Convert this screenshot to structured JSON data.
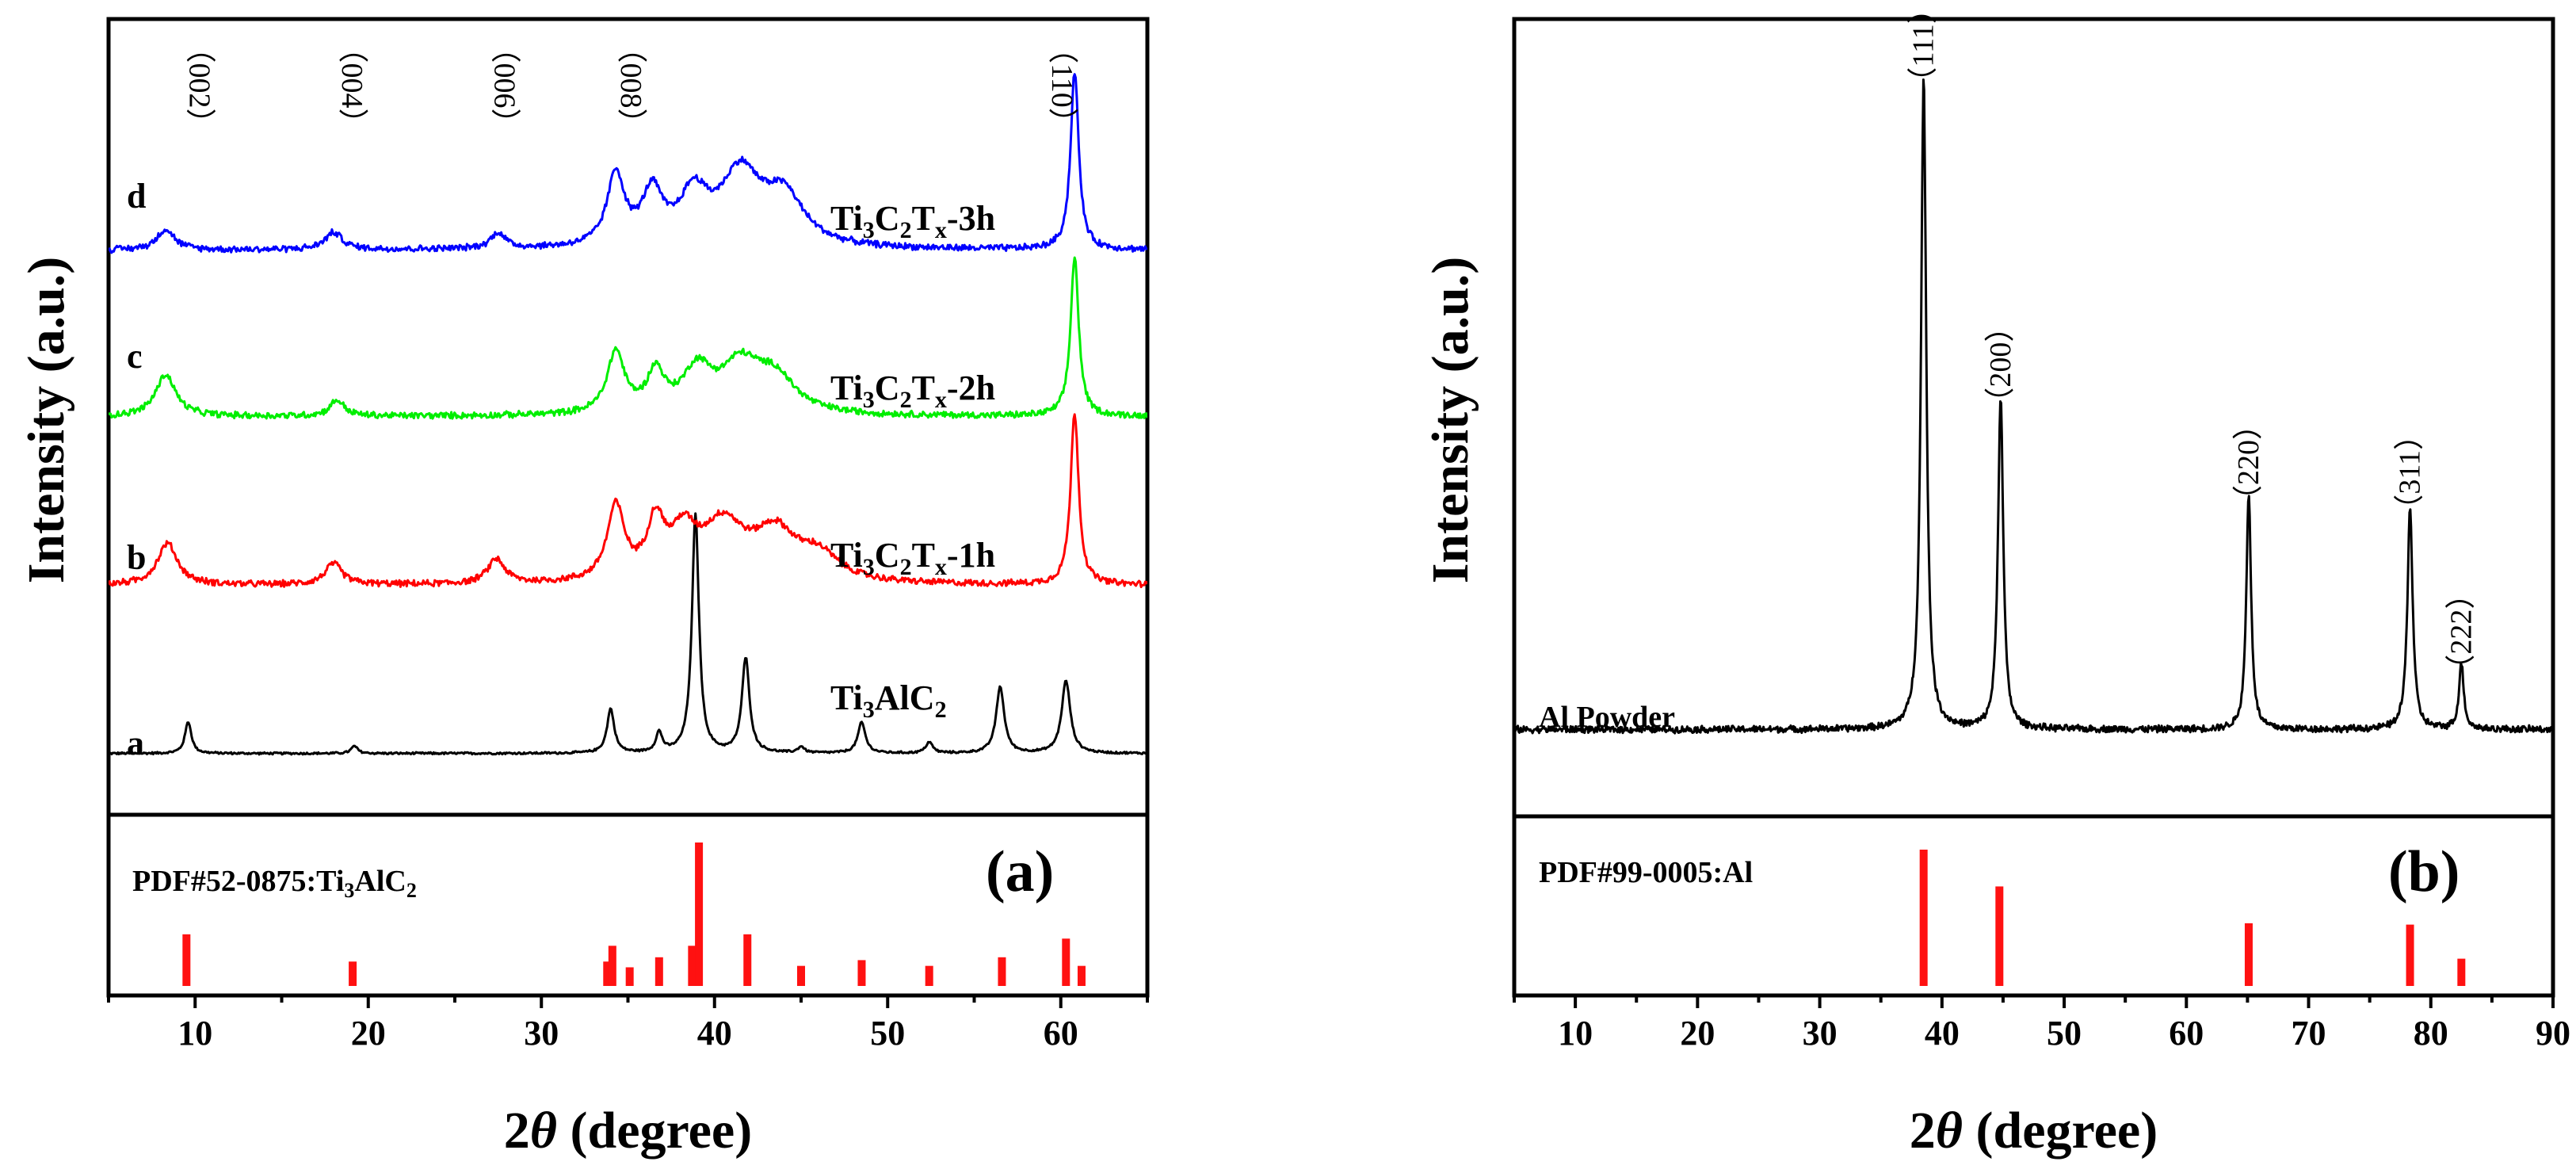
{
  "colors": {
    "black": "#000000",
    "red": "#ff0000",
    "green": "#00ee00",
    "blue": "#0000ff",
    "ref": "#ff1111"
  },
  "chart_data": [
    {
      "type": "line",
      "panel": "(a)",
      "xlabel": "2θ (degree)",
      "xlabel_parts": [
        "2",
        "θ",
        " (degree)"
      ],
      "ylabel": "Intensity (a.u.)",
      "xlim": [
        5,
        65
      ],
      "xticks": [
        "10",
        "20",
        "30",
        "40",
        "50",
        "60"
      ],
      "series": [
        {
          "name": "Ti3AlC2",
          "curve_letter": "a",
          "color": "#000000",
          "baseline": 0.06,
          "noise": 0.01,
          "peaks": [
            {
              "x": 9.6,
              "h": 0.26,
              "w": 0.22
            },
            {
              "x": 19.2,
              "h": 0.06,
              "w": 0.22
            },
            {
              "x": 34.0,
              "h": 0.36,
              "w": 0.25
            },
            {
              "x": 36.8,
              "h": 0.16,
              "w": 0.22
            },
            {
              "x": 38.9,
              "h": 1.95,
              "w": 0.24
            },
            {
              "x": 41.8,
              "h": 0.77,
              "w": 0.26
            },
            {
              "x": 45.0,
              "h": 0.05,
              "w": 0.22
            },
            {
              "x": 48.5,
              "h": 0.25,
              "w": 0.26
            },
            {
              "x": 52.4,
              "h": 0.09,
              "w": 0.24
            },
            {
              "x": 56.5,
              "h": 0.54,
              "w": 0.28
            },
            {
              "x": 60.3,
              "h": 0.59,
              "w": 0.3
            }
          ]
        },
        {
          "name": "Ti3C2Tx-1h",
          "curve_letter": "b",
          "color": "#ff0000",
          "baseline": 0.06,
          "noise": 0.03,
          "peaks": [
            {
              "x": 8.4,
              "h": 0.34,
              "w": 0.7
            },
            {
              "x": 18.0,
              "h": 0.17,
              "w": 0.6
            },
            {
              "x": 27.4,
              "h": 0.2,
              "w": 0.6
            },
            {
              "x": 34.3,
              "h": 0.6,
              "w": 0.6
            },
            {
              "x": 36.6,
              "h": 0.45,
              "w": 0.6
            },
            {
              "x": 38.2,
              "h": 0.35,
              "w": 0.9
            },
            {
              "x": 40.5,
              "h": 0.45,
              "w": 1.5
            },
            {
              "x": 43.5,
              "h": 0.38,
              "w": 1.5
            },
            {
              "x": 46.0,
              "h": 0.2,
              "w": 1.4
            },
            {
              "x": 60.8,
              "h": 1.4,
              "w": 0.28
            }
          ]
        },
        {
          "name": "Ti3C2Tx-2h",
          "curve_letter": "c",
          "color": "#00ee00",
          "baseline": 0.06,
          "noise": 0.03,
          "peaks": [
            {
              "x": 8.3,
              "h": 0.34,
              "w": 0.7
            },
            {
              "x": 18.2,
              "h": 0.13,
              "w": 0.5
            },
            {
              "x": 34.3,
              "h": 0.5,
              "w": 0.6
            },
            {
              "x": 36.6,
              "h": 0.32,
              "w": 0.6
            },
            {
              "x": 39.0,
              "h": 0.34,
              "w": 1.0
            },
            {
              "x": 41.5,
              "h": 0.38,
              "w": 1.4
            },
            {
              "x": 43.5,
              "h": 0.28,
              "w": 1.4
            },
            {
              "x": 60.8,
              "h": 1.3,
              "w": 0.28
            }
          ]
        },
        {
          "name": "Ti3C2Tx-3h",
          "curve_letter": "d",
          "color": "#0000ff",
          "baseline": 0.06,
          "noise": 0.03,
          "peaks": [
            {
              "x": 8.3,
              "h": 0.17,
              "w": 0.6
            },
            {
              "x": 18.0,
              "h": 0.14,
              "w": 0.6
            },
            {
              "x": 27.5,
              "h": 0.13,
              "w": 0.5
            },
            {
              "x": 34.3,
              "h": 0.58,
              "w": 0.6
            },
            {
              "x": 36.4,
              "h": 0.42,
              "w": 0.7
            },
            {
              "x": 38.8,
              "h": 0.4,
              "w": 1.0
            },
            {
              "x": 41.5,
              "h": 0.58,
              "w": 1.4
            },
            {
              "x": 44.0,
              "h": 0.4,
              "w": 1.4
            },
            {
              "x": 60.8,
              "h": 1.45,
              "w": 0.28
            }
          ]
        }
      ],
      "series_labels": [
        {
          "base": "Ti",
          "s1": "3",
          "p2": "C",
          "s2": "2",
          "p3": "T",
          "s3": "x",
          "tail": "-3h",
          "x": 40.9,
          "y": 0.91
        },
        {
          "base": "Ti",
          "s1": "3",
          "p2": "C",
          "s2": "2",
          "p3": "T",
          "s3": "x",
          "tail": "-2h",
          "x": 40.9,
          "y": 0.645
        },
        {
          "base": "Ti",
          "s1": "3",
          "p2": "C",
          "s2": "2",
          "p3": "T",
          "s3": "x",
          "tail": "-1h",
          "x": 40.9,
          "y": 0.385
        },
        {
          "base": "Ti",
          "s1": "3",
          "p2": "AlC",
          "s2": "2",
          "p3": "",
          "s3": "",
          "tail": "",
          "x": 47.7,
          "y": 0.185
        }
      ],
      "hkl_labels": [
        {
          "text": "（002）",
          "x": 9.7
        },
        {
          "text": "（004）",
          "x": 18.5
        },
        {
          "text": "（006）",
          "x": 27.3
        },
        {
          "text": "（008）",
          "x": 34.6
        },
        {
          "text": "（110）",
          "x": 59.5
        }
      ],
      "reference": {
        "label_prefix": "PDF#52-0875:Ti",
        "label_sub1": "3",
        "label_mid": "AlC",
        "label_sub2": "2",
        "positions": [
          9.5,
          19.1,
          33.8,
          34.1,
          35.1,
          36.8,
          38.7,
          39.1,
          41.9,
          45.0,
          48.5,
          52.4,
          56.6,
          60.3,
          61.2
        ],
        "intensities": [
          0.36,
          0.17,
          0.17,
          0.28,
          0.13,
          0.2,
          0.28,
          1.0,
          0.36,
          0.14,
          0.18,
          0.14,
          0.2,
          0.33,
          0.14
        ]
      }
    },
    {
      "type": "line",
      "panel": "(b)",
      "xlabel": "2θ (degree)",
      "xlabel_parts": [
        "2",
        "θ",
        " (degree)"
      ],
      "ylabel": "Intensity (a.u.)",
      "xlim": [
        5,
        90
      ],
      "xticks": [
        "10",
        "20",
        "30",
        "40",
        "50",
        "60",
        "70",
        "80",
        "90"
      ],
      "series": [
        {
          "name": "Al Powder",
          "color": "#000000",
          "baseline": 0.07,
          "noise": 0.006,
          "peaks": [
            {
              "x": 38.5,
              "h": 1.0,
              "w": 0.26
            },
            {
              "x": 44.8,
              "h": 0.51,
              "w": 0.26
            },
            {
              "x": 65.1,
              "h": 0.36,
              "w": 0.24
            },
            {
              "x": 78.3,
              "h": 0.34,
              "w": 0.26
            },
            {
              "x": 82.5,
              "h": 0.1,
              "w": 0.24
            }
          ]
        }
      ],
      "hkl_labels": [
        {
          "text": "（111）",
          "x": 38.5,
          "y": 1.12
        },
        {
          "text": "（200）",
          "x": 44.8,
          "y": 0.63
        },
        {
          "text": "（220）",
          "x": 65.1,
          "y": 0.48
        },
        {
          "text": "（311）",
          "x": 78.3,
          "y": 0.465
        },
        {
          "text": "（222）",
          "x": 82.5,
          "y": 0.22
        }
      ],
      "series_label": "Al Powder",
      "reference": {
        "label": "PDF#99-0005:Al",
        "positions": [
          38.5,
          44.7,
          65.1,
          78.3,
          82.5
        ],
        "intensities": [
          1.0,
          0.73,
          0.46,
          0.45,
          0.2
        ]
      }
    }
  ]
}
